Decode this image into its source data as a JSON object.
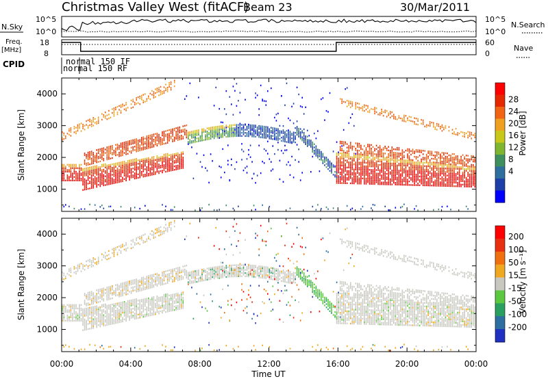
{
  "header": {
    "station": "Christmas Valley West (fitACF)",
    "beam": "Beam 23",
    "date": "30/Mar/2011"
  },
  "status_panels": {
    "nsky": {
      "label": "N.Sky",
      "right_label": "N.Search",
      "left_ticks": [
        "10^5",
        "10^0"
      ],
      "right_ticks": [
        "10^5",
        "10^0"
      ]
    },
    "freq": {
      "label_line1": "Freq.",
      "label_line2": "[MHz]",
      "left_ticks": [
        "18",
        "8"
      ],
      "right_ticks": [
        "60",
        "0"
      ],
      "right_label": "Nave"
    },
    "cpid": {
      "label": "CPID",
      "modes": [
        "normal 150 IF",
        "normal 150 RF"
      ]
    }
  },
  "chart_data": [
    {
      "type": "heatmap",
      "name": "power",
      "ylabel": "Slant Range [km]",
      "xlabel": "Time UT",
      "yticks": [
        "1000",
        "2000",
        "3000",
        "4000"
      ],
      "ylim": [
        300,
        4500
      ],
      "xlim_hours": [
        0,
        24
      ],
      "colorbar": {
        "label": "Power [dB]",
        "ticks": [
          "4",
          "8",
          "12",
          "16",
          "20",
          "24",
          "28"
        ],
        "colors": [
          "#0000ff",
          "#1e3fa8",
          "#2f6f9f",
          "#3f8f5f",
          "#7fb52f",
          "#c8c81a",
          "#f0a020",
          "#f06414",
          "#e62800",
          "#ff0000"
        ]
      }
    },
    {
      "type": "heatmap",
      "name": "velocity",
      "ylabel": "Slant Range [km]",
      "xlabel": "Time UT",
      "yticks": [
        "1000",
        "2000",
        "3000",
        "4000"
      ],
      "ylim": [
        300,
        4500
      ],
      "xlim_hours": [
        0,
        24
      ],
      "xticks": [
        "00:00",
        "04:00",
        "08:00",
        "12:00",
        "16:00",
        "20:00",
        "00:00"
      ],
      "colorbar": {
        "label": "Velocity [m s⁻¹]",
        "ticks": [
          "200",
          "100",
          "50",
          "15",
          "-15",
          "-50",
          "-100",
          "-200"
        ],
        "colors": [
          "#2030c0",
          "#2d6fa0",
          "#2aa060",
          "#5cc840",
          "#c8c8c0",
          "#f0a820",
          "#f07010",
          "#e83010",
          "#ff0000"
        ]
      }
    }
  ],
  "footer": {
    "xlabel": "Time UT",
    "xticks": [
      "00:00",
      "04:00",
      "08:00",
      "12:00",
      "16:00",
      "20:00",
      "00:00"
    ]
  }
}
